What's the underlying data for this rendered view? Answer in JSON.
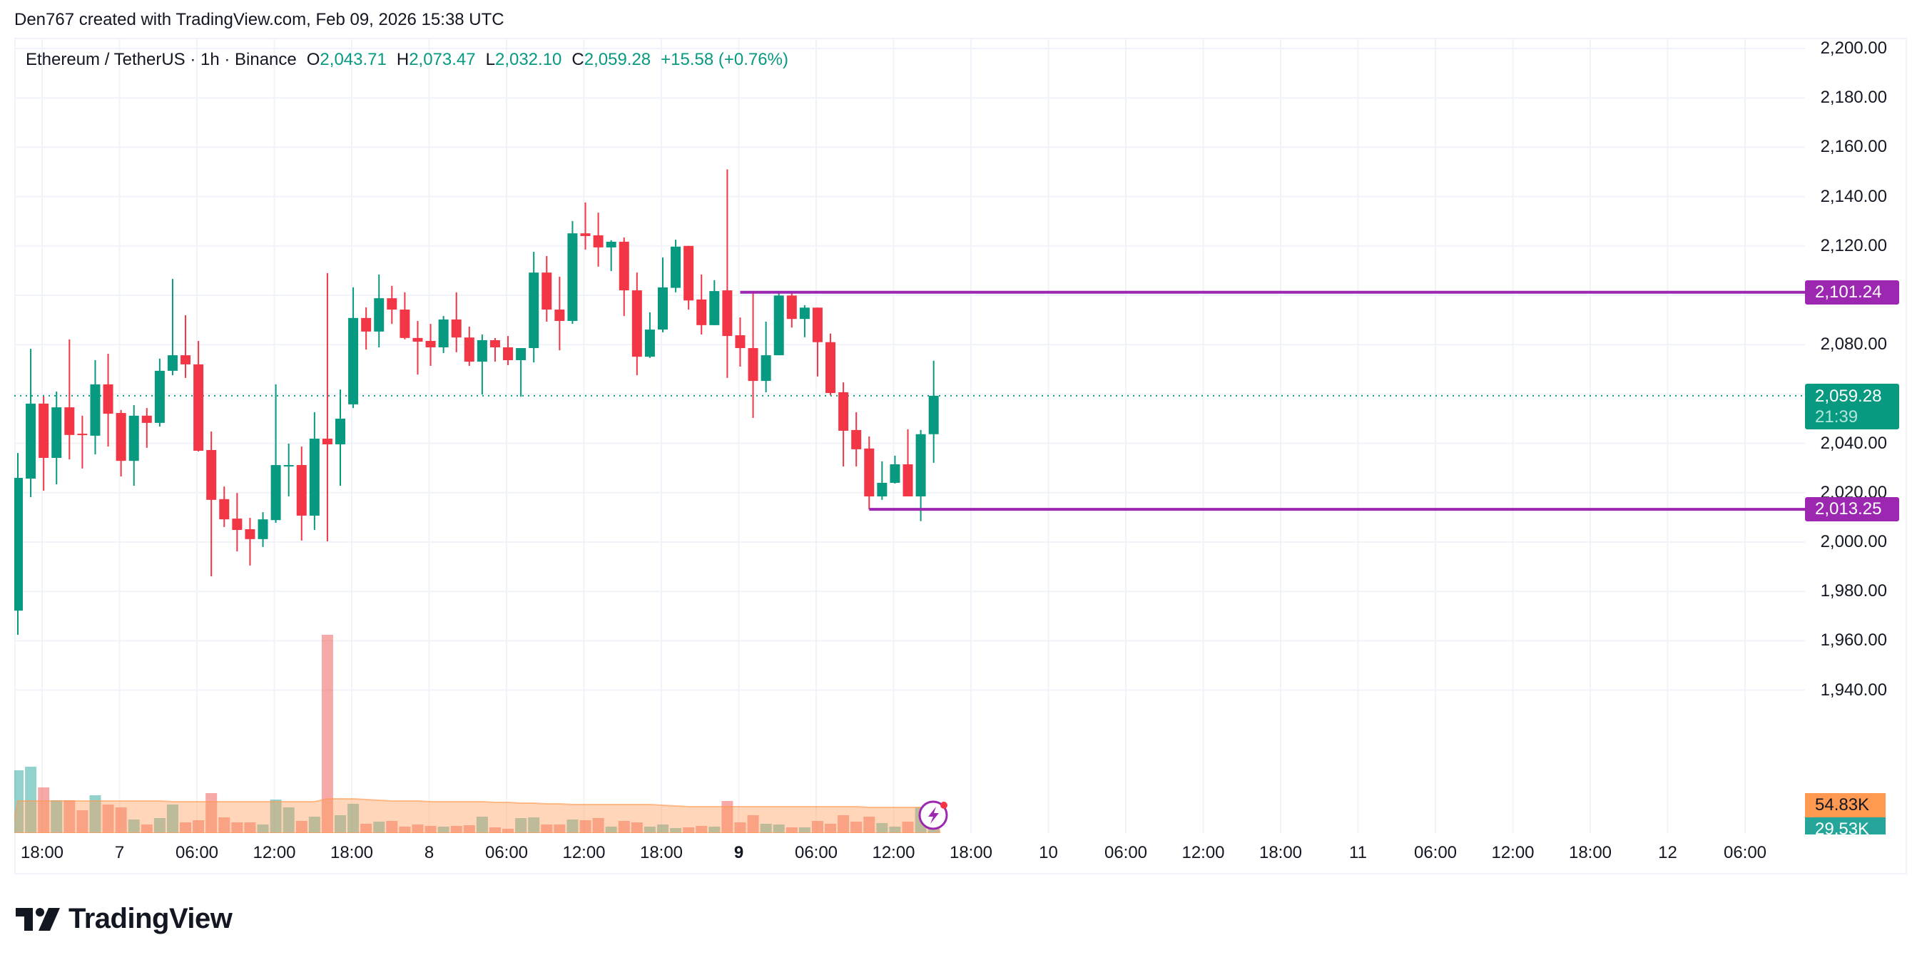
{
  "attribution": "Den767 created with TradingView.com, Feb 09, 2026 15:38 UTC",
  "legend": {
    "symbol": "Ethereum / TetherUS · 1h · Binance",
    "open_key": "O",
    "open": "2,043.71",
    "high_key": "H",
    "high": "2,073.47",
    "low_key": "L",
    "low": "2,032.10",
    "close_key": "C",
    "close": "2,059.28",
    "change": "+15.58 (+0.76%)"
  },
  "colors": {
    "up": "#089981",
    "down": "#f23645",
    "level_line": "#9c27b0",
    "last_price": "#089981",
    "volume_ma": "#ff9850",
    "volume_up": "#26a69a",
    "volume_down": "#ef5350"
  },
  "price_axis": {
    "ticks": [
      "2,200.00",
      "2,180.00",
      "2,160.00",
      "2,140.00",
      "2,120.00",
      "2,080.00",
      "2,040.00",
      "2,020.00",
      "2,000.00",
      "1,980.00",
      "1,960.00",
      "1,940.00"
    ],
    "level_high_label": "2,101.24",
    "level_low_label": "2,013.25",
    "last_price_label": "2,059.28",
    "countdown": "21:39",
    "volume_ma_label": "54.83K",
    "volume_label": "29.53K"
  },
  "time_axis": {
    "labels": [
      {
        "text": "18:00",
        "bold": false
      },
      {
        "text": "7",
        "bold": false
      },
      {
        "text": "06:00",
        "bold": false
      },
      {
        "text": "12:00",
        "bold": false
      },
      {
        "text": "18:00",
        "bold": false
      },
      {
        "text": "8",
        "bold": false
      },
      {
        "text": "06:00",
        "bold": false
      },
      {
        "text": "12:00",
        "bold": false
      },
      {
        "text": "18:00",
        "bold": false
      },
      {
        "text": "9",
        "bold": true
      },
      {
        "text": "06:00",
        "bold": false
      },
      {
        "text": "12:00",
        "bold": false
      },
      {
        "text": "18:00",
        "bold": false
      },
      {
        "text": "10",
        "bold": false
      },
      {
        "text": "06:00",
        "bold": false
      },
      {
        "text": "12:00",
        "bold": false
      },
      {
        "text": "18:00",
        "bold": false
      },
      {
        "text": "11",
        "bold": false
      },
      {
        "text": "06:00",
        "bold": false
      },
      {
        "text": "12:00",
        "bold": false
      },
      {
        "text": "18:00",
        "bold": false
      },
      {
        "text": "12",
        "bold": false
      },
      {
        "text": "06:00",
        "bold": false
      }
    ]
  },
  "logo_text": "TradingView",
  "chart_data": {
    "type": "candlestick",
    "title": "Ethereum / TetherUS · 1h · Binance",
    "xlabel": "",
    "ylabel": "",
    "ylim": [
      1930,
      2210
    ],
    "grid": true,
    "interval": "1h",
    "levels": [
      {
        "name": "resistance",
        "value": 2101.24,
        "start_index": 56
      },
      {
        "name": "support",
        "value": 2013.25,
        "start_index": 66
      }
    ],
    "last_price": 2059.28,
    "volume_last": "29.53K",
    "volume_ma_last": "54.83K",
    "candles": [
      {
        "o": 1972.2,
        "h": 2036.1,
        "l": 1962.4,
        "c": 2026.0,
        "v": 88
      },
      {
        "o": 2025.7,
        "h": 2078.3,
        "l": 2018.2,
        "c": 2056.1,
        "v": 93
      },
      {
        "o": 2056.1,
        "h": 2059.0,
        "l": 2020.8,
        "c": 2034.1,
        "v": 64
      },
      {
        "o": 2034.1,
        "h": 2061.0,
        "l": 2023.4,
        "c": 2054.6,
        "v": 46
      },
      {
        "o": 2054.6,
        "h": 2082.1,
        "l": 2033.5,
        "c": 2043.4,
        "v": 46
      },
      {
        "o": 2043.9,
        "h": 2051.2,
        "l": 2029.8,
        "c": 2043.4,
        "v": 32
      },
      {
        "o": 2043.1,
        "h": 2073.7,
        "l": 2035.5,
        "c": 2063.9,
        "v": 53
      },
      {
        "o": 2063.9,
        "h": 2076.3,
        "l": 2038.7,
        "c": 2052.0,
        "v": 40
      },
      {
        "o": 2052.3,
        "h": 2053.5,
        "l": 2026.6,
        "c": 2032.9,
        "v": 36
      },
      {
        "o": 2032.9,
        "h": 2055.5,
        "l": 2022.8,
        "c": 2051.2,
        "v": 19
      },
      {
        "o": 2051.2,
        "h": 2054.3,
        "l": 2038.2,
        "c": 2048.3,
        "v": 12
      },
      {
        "o": 2048.3,
        "h": 2074.3,
        "l": 2046.8,
        "c": 2069.4,
        "v": 21
      },
      {
        "o": 2069.4,
        "h": 2106.6,
        "l": 2067.6,
        "c": 2075.7,
        "v": 40
      },
      {
        "o": 2075.7,
        "h": 2091.9,
        "l": 2066.5,
        "c": 2072.0,
        "v": 15
      },
      {
        "o": 2072.0,
        "h": 2081.5,
        "l": 2036.7,
        "c": 2037.0,
        "v": 18
      },
      {
        "o": 2037.3,
        "h": 2044.8,
        "l": 1986.1,
        "c": 2017.1,
        "v": 56
      },
      {
        "o": 2017.4,
        "h": 2022.5,
        "l": 2006.1,
        "c": 2009.2,
        "v": 22
      },
      {
        "o": 2009.5,
        "h": 2019.9,
        "l": 1996.2,
        "c": 2004.9,
        "v": 15
      },
      {
        "o": 2005.2,
        "h": 2009.8,
        "l": 1990.5,
        "c": 2001.2,
        "v": 15
      },
      {
        "o": 2001.2,
        "h": 2012.1,
        "l": 1998.0,
        "c": 2009.2,
        "v": 12
      },
      {
        "o": 2008.9,
        "h": 2063.9,
        "l": 2007.8,
        "c": 2031.2,
        "v": 47
      },
      {
        "o": 2030.9,
        "h": 2039.9,
        "l": 2018.5,
        "c": 2031.2,
        "v": 36
      },
      {
        "o": 2031.2,
        "h": 2038.7,
        "l": 2000.6,
        "c": 2010.7,
        "v": 17
      },
      {
        "o": 2010.7,
        "h": 2052.6,
        "l": 2004.9,
        "c": 2041.9,
        "v": 23
      },
      {
        "o": 2041.9,
        "h": 2109.0,
        "l": 2000.3,
        "c": 2039.6,
        "v": 278
      },
      {
        "o": 2039.6,
        "h": 2061.8,
        "l": 2022.8,
        "c": 2050.0,
        "v": 25
      },
      {
        "o": 2055.8,
        "h": 2103.2,
        "l": 2054.3,
        "c": 2090.8,
        "v": 41
      },
      {
        "o": 2090.8,
        "h": 2095.1,
        "l": 2078.0,
        "c": 2085.3,
        "v": 13
      },
      {
        "o": 2085.3,
        "h": 2108.4,
        "l": 2078.9,
        "c": 2098.8,
        "v": 16
      },
      {
        "o": 2098.8,
        "h": 2103.8,
        "l": 2088.4,
        "c": 2094.2,
        "v": 17
      },
      {
        "o": 2094.2,
        "h": 2101.2,
        "l": 2082.1,
        "c": 2082.7,
        "v": 9
      },
      {
        "o": 2082.7,
        "h": 2089.6,
        "l": 2067.9,
        "c": 2081.2,
        "v": 12
      },
      {
        "o": 2081.5,
        "h": 2088.4,
        "l": 2071.4,
        "c": 2078.9,
        "v": 10
      },
      {
        "o": 2078.9,
        "h": 2091.6,
        "l": 2076.6,
        "c": 2090.2,
        "v": 9
      },
      {
        "o": 2090.2,
        "h": 2101.2,
        "l": 2076.9,
        "c": 2082.9,
        "v": 10
      },
      {
        "o": 2082.9,
        "h": 2087.3,
        "l": 2071.4,
        "c": 2073.1,
        "v": 11
      },
      {
        "o": 2073.1,
        "h": 2084.1,
        "l": 2059.8,
        "c": 2081.8,
        "v": 23
      },
      {
        "o": 2081.8,
        "h": 2082.7,
        "l": 2073.1,
        "c": 2078.9,
        "v": 8
      },
      {
        "o": 2078.9,
        "h": 2083.5,
        "l": 2071.7,
        "c": 2073.7,
        "v": 6
      },
      {
        "o": 2073.7,
        "h": 2078.6,
        "l": 2058.9,
        "c": 2078.6,
        "v": 21
      },
      {
        "o": 2078.6,
        "h": 2117.6,
        "l": 2072.8,
        "c": 2109.2,
        "v": 22
      },
      {
        "o": 2109.2,
        "h": 2115.9,
        "l": 2089.3,
        "c": 2094.2,
        "v": 12
      },
      {
        "o": 2094.2,
        "h": 2107.5,
        "l": 2077.7,
        "c": 2089.6,
        "v": 12
      },
      {
        "o": 2089.6,
        "h": 2130.1,
        "l": 2088.4,
        "c": 2125.1,
        "v": 19
      },
      {
        "o": 2125.1,
        "h": 2137.6,
        "l": 2118.5,
        "c": 2124.0,
        "v": 18
      },
      {
        "o": 2124.3,
        "h": 2133.5,
        "l": 2111.6,
        "c": 2119.4,
        "v": 21
      },
      {
        "o": 2119.4,
        "h": 2122.3,
        "l": 2109.8,
        "c": 2121.7,
        "v": 9
      },
      {
        "o": 2121.7,
        "h": 2123.4,
        "l": 2091.6,
        "c": 2102.0,
        "v": 17
      },
      {
        "o": 2102.0,
        "h": 2109.2,
        "l": 2067.6,
        "c": 2075.1,
        "v": 15
      },
      {
        "o": 2075.1,
        "h": 2093.1,
        "l": 2074.6,
        "c": 2086.1,
        "v": 9
      },
      {
        "o": 2086.1,
        "h": 2115.3,
        "l": 2085.0,
        "c": 2103.2,
        "v": 12
      },
      {
        "o": 2103.0,
        "h": 2122.5,
        "l": 2101.2,
        "c": 2119.7,
        "v": 7
      },
      {
        "o": 2120.0,
        "h": 2120.0,
        "l": 2094.2,
        "c": 2097.9,
        "v": 8
      },
      {
        "o": 2098.3,
        "h": 2108.4,
        "l": 2084.1,
        "c": 2087.9,
        "v": 10
      },
      {
        "o": 2087.9,
        "h": 2106.1,
        "l": 2087.9,
        "c": 2101.7,
        "v": 9
      },
      {
        "o": 2102.0,
        "h": 2151.0,
        "l": 2066.5,
        "c": 2083.5,
        "v": 45
      },
      {
        "o": 2083.8,
        "h": 2091.0,
        "l": 2071.1,
        "c": 2078.6,
        "v": 15
      },
      {
        "o": 2078.6,
        "h": 2101.24,
        "l": 2050.3,
        "c": 2065.3,
        "v": 25
      },
      {
        "o": 2065.3,
        "h": 2089.3,
        "l": 2060.7,
        "c": 2075.7,
        "v": 13
      },
      {
        "o": 2075.7,
        "h": 2101.5,
        "l": 2075.7,
        "c": 2099.9,
        "v": 12
      },
      {
        "o": 2099.9,
        "h": 2101.2,
        "l": 2086.9,
        "c": 2090.4,
        "v": 8
      },
      {
        "o": 2090.4,
        "h": 2096.0,
        "l": 2083.0,
        "c": 2095.0,
        "v": 8
      },
      {
        "o": 2095.0,
        "h": 2095.0,
        "l": 2067.1,
        "c": 2081.0,
        "v": 17
      },
      {
        "o": 2081.0,
        "h": 2084.5,
        "l": 2059.5,
        "c": 2060.4,
        "v": 13
      },
      {
        "o": 2060.7,
        "h": 2064.7,
        "l": 2030.6,
        "c": 2045.1,
        "v": 25
      },
      {
        "o": 2045.4,
        "h": 2052.6,
        "l": 2030.6,
        "c": 2037.6,
        "v": 16
      },
      {
        "o": 2037.9,
        "h": 2042.8,
        "l": 2013.25,
        "c": 2018.5,
        "v": 23
      },
      {
        "o": 2018.5,
        "h": 2032.7,
        "l": 2017.1,
        "c": 2024.0,
        "v": 14
      },
      {
        "o": 2024.0,
        "h": 2035.0,
        "l": 2023.7,
        "c": 2031.5,
        "v": 9
      },
      {
        "o": 2031.5,
        "h": 2045.7,
        "l": 2018.5,
        "c": 2018.5,
        "v": 16
      },
      {
        "o": 2018.5,
        "h": 2045.4,
        "l": 2008.5,
        "c": 2043.71,
        "v": 36
      },
      {
        "o": 2043.71,
        "h": 2073.47,
        "l": 2032.1,
        "c": 2059.28,
        "v": 22
      }
    ],
    "volume_ma": [
      45,
      45,
      45,
      45,
      45,
      45,
      45,
      45,
      45,
      45,
      45,
      45,
      44,
      44,
      44,
      44,
      44,
      44,
      44,
      44,
      44,
      44,
      44,
      44,
      48,
      48,
      48,
      47,
      46,
      45,
      45,
      45,
      44,
      44,
      44,
      44,
      44,
      43,
      43,
      42,
      42,
      41,
      41,
      40,
      40,
      40,
      40,
      40,
      40,
      40,
      39,
      38,
      37,
      37,
      37,
      37,
      37,
      37,
      37,
      37,
      37,
      37,
      37,
      37,
      37,
      37,
      36,
      36,
      36,
      36,
      36,
      36
    ]
  }
}
